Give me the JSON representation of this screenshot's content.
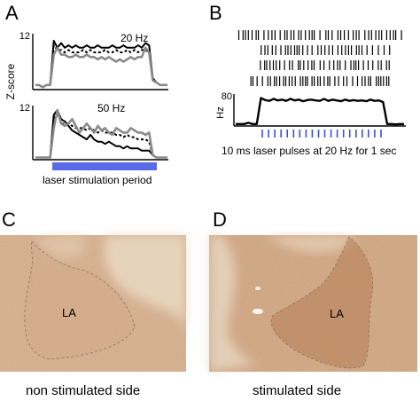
{
  "panels": {
    "A": {
      "letter": "A",
      "ylabel": "Z-score",
      "top": {
        "ytick": "12",
        "freq_label": "20 Hz"
      },
      "bottom": {
        "ytick": "12",
        "freq_label": "50 Hz"
      },
      "bar_label": "laser stimulation period"
    },
    "B": {
      "letter": "B",
      "ytick": "80",
      "ylabel": "Hz",
      "pulse_label": "10 ms laser pulses at 20 Hz for 1 sec"
    },
    "C": {
      "letter": "C",
      "region_label": "LA",
      "caption": "non stimulated side"
    },
    "D": {
      "letter": "D",
      "region_label": "LA",
      "caption": "stimulated side"
    }
  },
  "colors": {
    "laser_bar": "#5a6be8",
    "pulse_tick": "#3a4fd8",
    "trace_gray": "#8a8a8a",
    "tissue": "#d9b494"
  },
  "chart_data": [
    {
      "type": "line",
      "panel": "A-top",
      "x": [
        0,
        1,
        2,
        3,
        4,
        5,
        6,
        7,
        8,
        9,
        10,
        11,
        12,
        13,
        14,
        15,
        16,
        17,
        18,
        19,
        20,
        21,
        22,
        23,
        24,
        25,
        26,
        27,
        28,
        29,
        30,
        31,
        32,
        33,
        34,
        35,
        36
      ],
      "series": [
        {
          "values": [
            1,
            1,
            0.5,
            1,
            1,
            10.5,
            9,
            10,
            9,
            9.5,
            9,
            9.5,
            9,
            9,
            9.5,
            9,
            9,
            9.5,
            9,
            9,
            9,
            9.5,
            9,
            9,
            9.5,
            9,
            9,
            9,
            9.5,
            9,
            10,
            9.5,
            2.5,
            1.5,
            1,
            1,
            1
          ]
        },
        {
          "values": [
            1,
            1,
            0.5,
            1,
            1,
            9.5,
            8.5,
            8.5,
            8,
            8.5,
            8,
            8,
            8,
            8.5,
            8,
            8.5,
            8,
            8,
            8,
            8.5,
            8,
            8,
            8.5,
            8,
            8,
            8.5,
            8,
            8.5,
            8,
            8.5,
            8.5,
            8,
            2,
            1.5,
            1,
            1,
            1
          ]
        },
        {
          "values": [
            1,
            1,
            0.5,
            1,
            1,
            7.5,
            9,
            7.5,
            7.5,
            7,
            7,
            7.5,
            7,
            7,
            7.5,
            7,
            7,
            6.5,
            7,
            6.5,
            7,
            6.5,
            6,
            6.5,
            6,
            6.5,
            7,
            6.5,
            7,
            7,
            9,
            8,
            2,
            1.5,
            1,
            1,
            1
          ]
        }
      ],
      "ylim": [
        0,
        12
      ]
    },
    {
      "type": "line",
      "panel": "A-bottom",
      "x": [
        0,
        1,
        2,
        3,
        4,
        5,
        6,
        7,
        8,
        9,
        10,
        11,
        12,
        13,
        14,
        15,
        16,
        17,
        18,
        19,
        20,
        21,
        22,
        23,
        24,
        25,
        26,
        27,
        28,
        29,
        30,
        31,
        32,
        33,
        34,
        35,
        36
      ],
      "series": [
        {
          "values": [
            0.5,
            0.5,
            0.5,
            0.5,
            0.5,
            10,
            11,
            9,
            8.5,
            7.5,
            6.5,
            6,
            5.5,
            5,
            4.5,
            5.5,
            4.5,
            4,
            4,
            3.5,
            4,
            3.5,
            3,
            3,
            2.5,
            3,
            2.5,
            2.5,
            2.5,
            2,
            2,
            2,
            1,
            0.5,
            0.5,
            0.5,
            0.5
          ]
        },
        {
          "values": [
            0.5,
            0.5,
            0.5,
            0.5,
            0.5,
            9,
            10.5,
            8,
            8,
            8,
            7.5,
            7,
            7,
            7,
            6.5,
            7,
            6.5,
            6,
            6.5,
            6,
            6,
            6,
            5.5,
            5.5,
            5,
            5.5,
            5,
            5,
            4.5,
            4.5,
            4.5,
            4,
            1,
            0.5,
            0.5,
            0.5,
            0.5
          ]
        },
        {
          "values": [
            0.5,
            0.5,
            0.5,
            0.5,
            0.5,
            7,
            11,
            8,
            7.5,
            8,
            9,
            7.5,
            6,
            7,
            8,
            7,
            6,
            7.5,
            6.5,
            7,
            6,
            5.5,
            7,
            6.5,
            6,
            6,
            7,
            6.5,
            6,
            6,
            5.5,
            6,
            1,
            0.5,
            0.5,
            0.5,
            0.5
          ]
        }
      ],
      "ylim": [
        0,
        12
      ]
    },
    {
      "type": "line",
      "panel": "B-rate",
      "x": [
        0,
        1,
        2,
        3,
        4,
        5,
        6,
        7,
        8,
        9,
        10,
        11,
        12,
        13,
        14,
        15,
        16,
        17,
        18,
        19,
        20,
        21,
        22,
        23,
        24,
        25,
        26,
        27,
        28,
        29,
        30,
        31,
        32,
        33,
        34,
        35,
        36,
        37,
        38,
        39,
        40
      ],
      "series": [
        {
          "values": [
            5,
            5,
            5,
            8,
            5,
            5,
            70,
            65,
            63,
            68,
            64,
            66,
            63,
            68,
            64,
            66,
            62,
            65,
            66,
            64,
            63,
            68,
            63,
            66,
            64,
            62,
            66,
            63,
            65,
            63,
            64,
            62,
            66,
            63,
            64,
            60,
            5,
            5,
            4,
            5,
            5
          ]
        }
      ],
      "ylim": [
        0,
        80
      ],
      "pulses": 20
    }
  ]
}
